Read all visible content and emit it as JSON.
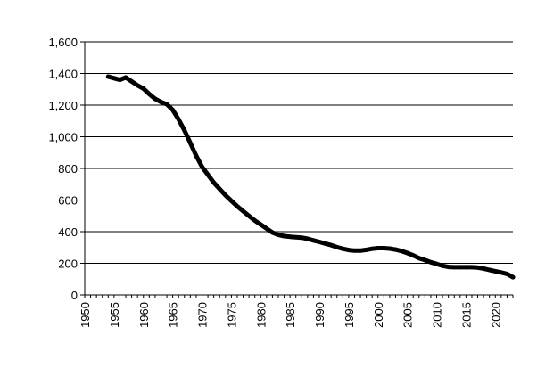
{
  "chart_data": {
    "type": "line",
    "title": "",
    "xlabel": "",
    "ylabel": "",
    "xlim": [
      1950,
      2023
    ],
    "ylim": [
      0,
      1600
    ],
    "x_ticks": [
      "1950",
      "1955",
      "1960",
      "1965",
      "1970",
      "1975",
      "1980",
      "1985",
      "1990",
      "1995",
      "2000",
      "2005",
      "2010",
      "2015",
      "2020"
    ],
    "y_ticks": [
      "0",
      "200",
      "400",
      "600",
      "800",
      "1,000",
      "1,200",
      "1,400",
      "1,600"
    ],
    "grid": "horizontal",
    "legend": "none",
    "series": [
      {
        "color": "#000000",
        "x": [
          1954,
          1955,
          1956,
          1957,
          1958,
          1959,
          1960,
          1961,
          1962,
          1963,
          1964,
          1965,
          1966,
          1967,
          1968,
          1969,
          1970,
          1971,
          1972,
          1973,
          1974,
          1975,
          1976,
          1977,
          1978,
          1979,
          1980,
          1981,
          1982,
          1983,
          1984,
          1985,
          1986,
          1987,
          1988,
          1989,
          1990,
          1991,
          1992,
          1993,
          1994,
          1995,
          1996,
          1997,
          1998,
          1999,
          2000,
          2001,
          2002,
          2003,
          2004,
          2005,
          2006,
          2007,
          2008,
          2009,
          2010,
          2011,
          2012,
          2013,
          2014,
          2015,
          2016,
          2017,
          2018,
          2019,
          2020,
          2021,
          2022,
          2023
        ],
        "values": [
          1380,
          1370,
          1360,
          1375,
          1350,
          1325,
          1305,
          1270,
          1240,
          1220,
          1205,
          1170,
          1110,
          1040,
          960,
          880,
          810,
          760,
          710,
          670,
          630,
          595,
          560,
          530,
          500,
          470,
          445,
          420,
          395,
          380,
          372,
          368,
          365,
          362,
          355,
          345,
          335,
          325,
          315,
          302,
          292,
          284,
          280,
          280,
          285,
          292,
          296,
          296,
          293,
          287,
          277,
          265,
          250,
          232,
          220,
          207,
          196,
          184,
          177,
          175,
          175,
          175,
          175,
          173,
          167,
          158,
          150,
          142,
          133,
          112
        ]
      }
    ]
  }
}
